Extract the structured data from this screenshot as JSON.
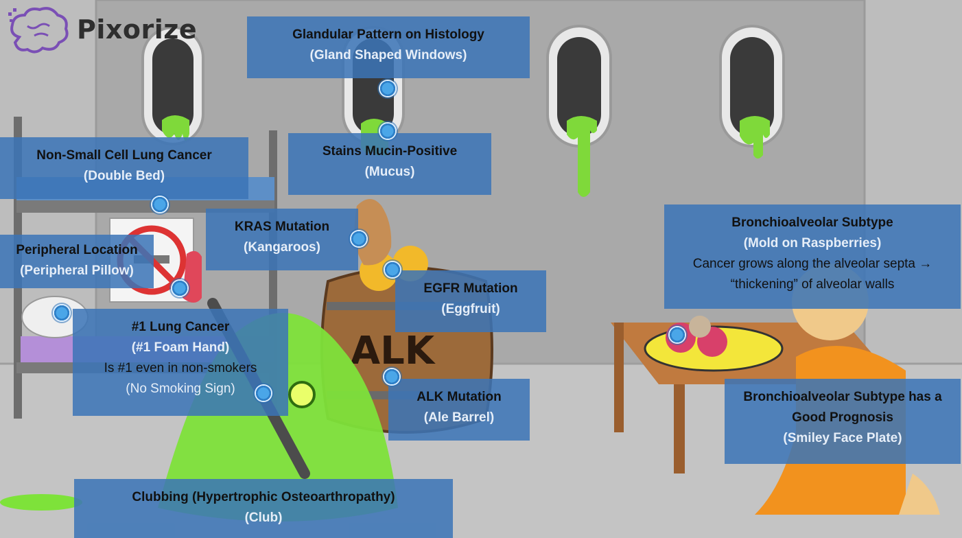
{
  "brand": {
    "name": "Pixorize"
  },
  "scene_text": {
    "barrel": "ALK"
  },
  "labels": [
    {
      "id": "glandular",
      "title": "Glandular Pattern on Histology",
      "mnemonic": "(Gland Shaped Windows)"
    },
    {
      "id": "nsclc",
      "title": "Non-Small Cell Lung Cancer",
      "mnemonic": "(Double Bed)"
    },
    {
      "id": "mucin",
      "title": "Stains Mucin-Positive",
      "mnemonic": "(Mucus)"
    },
    {
      "id": "kras",
      "title": "KRAS Mutation",
      "mnemonic": "(Kangaroos)"
    },
    {
      "id": "peripheral",
      "title": "Peripheral Location",
      "mnemonic": "(Peripheral Pillow)"
    },
    {
      "id": "egfr",
      "title": "EGFR Mutation",
      "mnemonic": "(Eggfruit)"
    },
    {
      "id": "number1",
      "title": "#1 Lung Cancer",
      "mnemonic": "(#1 Foam Hand)",
      "detail": "Is #1 even in non-smokers",
      "detail_mnemonic": "(No Smoking Sign)"
    },
    {
      "id": "alk",
      "title": "ALK Mutation",
      "mnemonic": "(Ale Barrel)"
    },
    {
      "id": "bronchio",
      "title": "Bronchioalveolar Subtype",
      "mnemonic": "(Mold on Raspberries)",
      "detail": "Cancer grows along the alveolar septa → “thickening” of alveolar walls"
    },
    {
      "id": "prognosis",
      "title": "Bronchioalveolar Subtype has a Good Prognosis",
      "mnemonic": "(Smiley Face Plate)"
    },
    {
      "id": "clubbing",
      "title": "Clubbing (Hypertrophic Osteoarthropathy)",
      "mnemonic": "(Club)"
    }
  ]
}
